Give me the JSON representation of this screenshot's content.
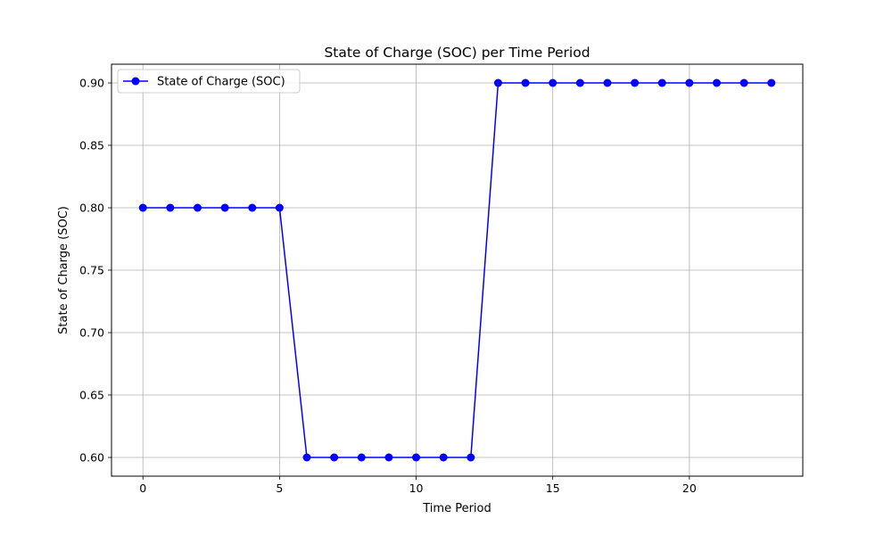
{
  "chart_data": {
    "type": "line",
    "title": "State of Charge (SOC) per Time Period",
    "xlabel": "Time Period",
    "ylabel": "State of Charge (SOC)",
    "xlim": [
      -1.15,
      24.15
    ],
    "ylim": [
      0.585,
      0.915
    ],
    "xticks": [
      0,
      5,
      10,
      15,
      20
    ],
    "yticks": [
      0.6,
      0.65,
      0.7,
      0.75,
      0.8,
      0.85,
      0.9
    ],
    "grid": true,
    "legend_position": "top-left",
    "series": [
      {
        "name": "State of Charge (SOC)",
        "color": "#0000ff",
        "marker": "circle",
        "x": [
          0,
          1,
          2,
          3,
          4,
          5,
          6,
          7,
          8,
          9,
          10,
          11,
          12,
          13,
          14,
          15,
          16,
          17,
          18,
          19,
          20,
          21,
          22,
          23
        ],
        "y": [
          0.8,
          0.8,
          0.8,
          0.8,
          0.8,
          0.8,
          0.6,
          0.6,
          0.6,
          0.6,
          0.6,
          0.6,
          0.6,
          0.9,
          0.9,
          0.9,
          0.9,
          0.9,
          0.9,
          0.9,
          0.9,
          0.9,
          0.9,
          0.9
        ]
      }
    ]
  }
}
